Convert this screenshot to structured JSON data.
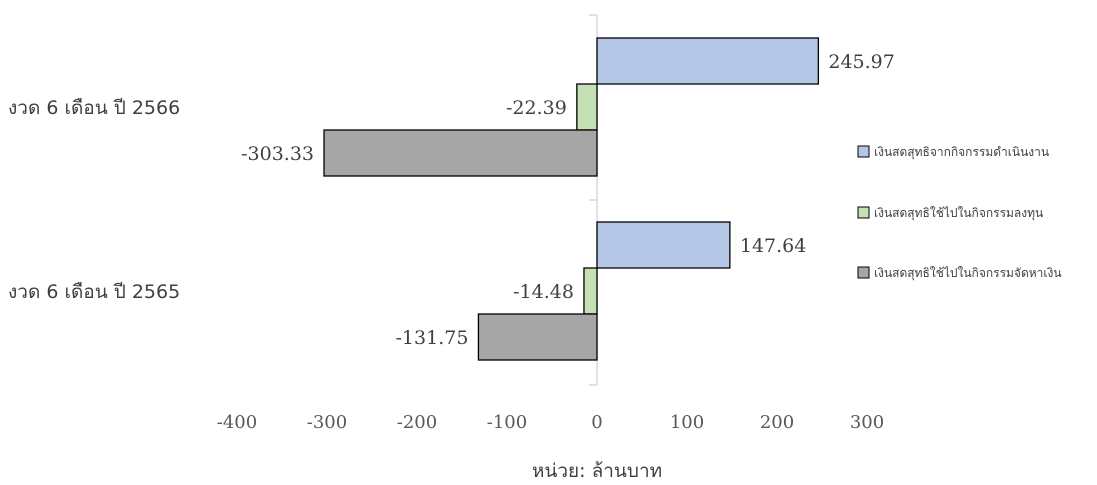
{
  "chart_data": {
    "type": "bar",
    "orientation": "horizontal",
    "categories": [
      "งวด 6 เดือน ปี 2566",
      "งวด 6 เดือน ปี 2565"
    ],
    "series": [
      {
        "name": "เงินสดสุทธิจากกิจกรรมดำเนินงาน",
        "values": [
          245.97,
          147.64
        ],
        "labels": [
          "245.97",
          "147.64"
        ],
        "color": "#b4c7e7"
      },
      {
        "name": "เงินสดสุทธิใช้ไปในกิจกรรมลงทุน",
        "values": [
          -22.39,
          -14.48
        ],
        "labels": [
          "-22.39",
          "-14.48"
        ],
        "color": "#c5e0b4"
      },
      {
        "name": "เงินสดสุทธิใช้ไปในกิจกรรมจัดหาเงิน",
        "values": [
          -303.33,
          -131.75
        ],
        "labels": [
          "-303.33",
          "-131.75"
        ],
        "color": "#a6a6a6"
      }
    ],
    "xlim": [
      -400,
      300
    ],
    "xticks": [
      "-400",
      "-300",
      "-200",
      "-100",
      "0",
      "100",
      "200",
      "300"
    ],
    "xlabel": "หน่วย: ล้านบาท",
    "grid": false,
    "legend": "right"
  }
}
